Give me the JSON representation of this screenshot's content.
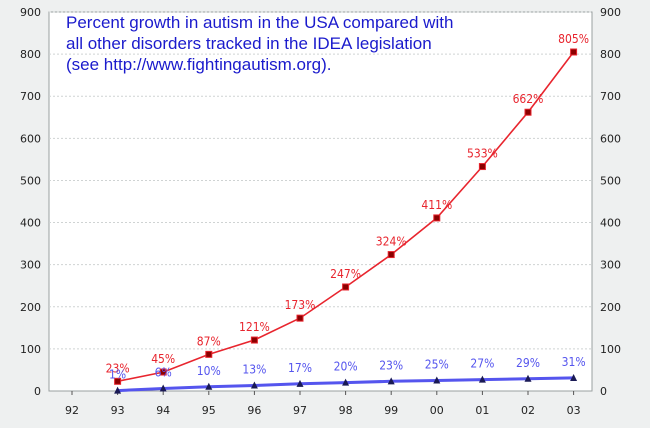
{
  "chart_data": {
    "type": "line",
    "title": "Percent growth in autism in the USA compared with\nall other disorders tracked in the IDEA legislation\n(see http://www.fightingautism.org).",
    "xlabel": "",
    "ylabel": "",
    "categories": [
      "92",
      "93",
      "94",
      "95",
      "96",
      "97",
      "98",
      "99",
      "00",
      "01",
      "02",
      "03"
    ],
    "ylim": [
      0,
      900
    ],
    "yticks": [
      0,
      100,
      200,
      300,
      400,
      500,
      600,
      700,
      800,
      900
    ],
    "grid": true,
    "series": [
      {
        "color": "#e8252e",
        "marker": "square",
        "values": [
          null,
          23,
          45,
          87,
          121,
          173,
          247,
          324,
          411,
          533,
          662,
          805
        ],
        "labels": [
          "",
          "23%",
          "45%",
          "87%",
          "121%",
          "173%",
          "247%",
          "324%",
          "411%",
          "533%",
          "662%",
          "805%"
        ]
      },
      {
        "color": "#5555ee",
        "marker": "triangle",
        "values": [
          null,
          1,
          6,
          10,
          13,
          17,
          20,
          23,
          25,
          27,
          29,
          31
        ],
        "labels": [
          "",
          "1%",
          "6%",
          "10%",
          "13%",
          "17%",
          "20%",
          "23%",
          "25%",
          "27%",
          "29%",
          "31%"
        ]
      }
    ]
  }
}
